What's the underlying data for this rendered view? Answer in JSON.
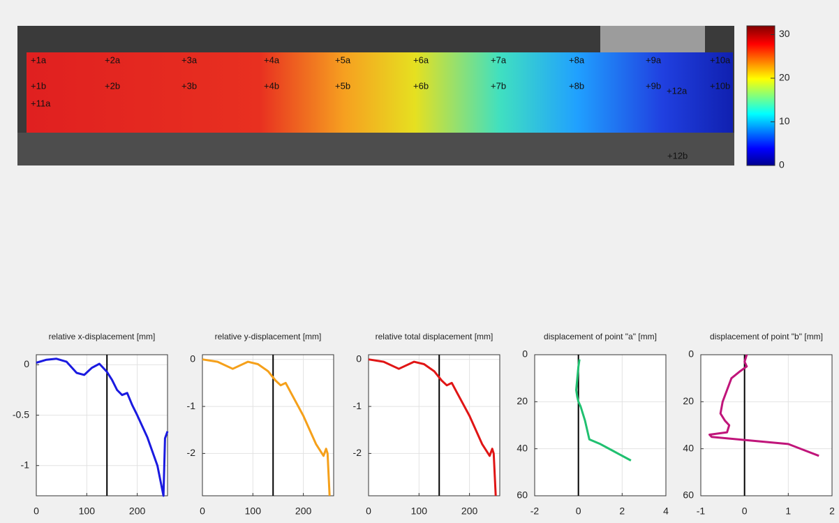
{
  "chart_data": [
    {
      "type": "image",
      "colorbar": {
        "clim": [
          0,
          32
        ],
        "ticks": [
          0,
          10,
          20,
          30
        ]
      },
      "point_labels": [
        "+1a",
        "+2a",
        "+3a",
        "+4a",
        "+5a",
        "+6a",
        "+7a",
        "+8a",
        "+9a",
        "+10a",
        "+1b",
        "+2b",
        "+3b",
        "+4b",
        "+5b",
        "+6b",
        "+7b",
        "+8b",
        "+9b",
        "+10b",
        "+11a",
        "+12a",
        "+12b"
      ]
    },
    {
      "type": "line",
      "title": "relative x-displacement [mm]",
      "color": "#1a1ae0",
      "x": [
        0,
        20,
        40,
        60,
        80,
        95,
        110,
        125,
        140,
        150,
        160,
        170,
        180,
        190,
        200,
        220,
        240,
        252,
        255,
        260
      ],
      "values": [
        0.02,
        0.05,
        0.06,
        0.03,
        -0.08,
        -0.1,
        -0.03,
        0.01,
        -0.07,
        -0.15,
        -0.25,
        -0.3,
        -0.28,
        -0.4,
        -0.5,
        -0.72,
        -1.0,
        -1.3,
        -0.73,
        -0.66
      ],
      "xlim": [
        0,
        260
      ],
      "ylim": [
        -1.3,
        0.1
      ],
      "xticks": [
        0,
        100,
        200
      ],
      "yticks": [
        -1,
        -0.5,
        0
      ],
      "grid": true,
      "vline": 140
    },
    {
      "type": "line",
      "title": "relative y-displacement [mm]",
      "color": "#f5a01a",
      "x": [
        0,
        30,
        60,
        90,
        110,
        130,
        145,
        155,
        165,
        175,
        200,
        225,
        240,
        245,
        248,
        252
      ],
      "values": [
        0,
        -0.05,
        -0.2,
        -0.05,
        -0.1,
        -0.25,
        -0.45,
        -0.55,
        -0.5,
        -0.7,
        -1.2,
        -1.8,
        -2.05,
        -1.9,
        -2.0,
        -2.9
      ],
      "xlim": [
        0,
        260
      ],
      "ylim": [
        -2.9,
        0.1
      ],
      "xticks": [
        0,
        100,
        200
      ],
      "yticks": [
        -2,
        -1,
        0
      ],
      "grid": true,
      "vline": 140
    },
    {
      "type": "line",
      "title": "relative total displacement [mm]",
      "color": "#e01515",
      "x": [
        0,
        30,
        60,
        90,
        110,
        130,
        145,
        155,
        165,
        175,
        200,
        225,
        240,
        245,
        248,
        252
      ],
      "values": [
        0,
        -0.05,
        -0.2,
        -0.05,
        -0.1,
        -0.25,
        -0.45,
        -0.55,
        -0.5,
        -0.7,
        -1.2,
        -1.8,
        -2.05,
        -1.9,
        -2.0,
        -2.9
      ],
      "xlim": [
        0,
        260
      ],
      "ylim": [
        -2.9,
        0.1
      ],
      "xticks": [
        0,
        100,
        200
      ],
      "yticks": [
        -2,
        -1,
        0
      ],
      "grid": true,
      "vline": 140
    },
    {
      "type": "line",
      "title": "displacement of point \"a\" [mm]",
      "color": "#20c070",
      "y_reversed": true,
      "x": [
        0.05,
        0,
        -0.05,
        -0.1,
        -0.05,
        0,
        0.1,
        0.3,
        0.5,
        1.0,
        1.6,
        2.4
      ],
      "values": [
        2,
        5,
        10,
        15,
        18,
        20,
        22,
        28,
        36,
        38,
        41,
        45
      ],
      "xlim": [
        -2,
        4
      ],
      "ylim": [
        0,
        60
      ],
      "xticks": [
        -2,
        0,
        2,
        4
      ],
      "yticks": [
        0,
        20,
        40,
        60
      ],
      "grid": true,
      "vline": 0
    },
    {
      "type": "line",
      "title": "displacement of point \"b\" [mm]",
      "color": "#c0157a",
      "y_reversed": true,
      "x": [
        0.05,
        0,
        0.05,
        -0.1,
        -0.3,
        -0.4,
        -0.5,
        -0.55,
        -0.45,
        -0.35,
        -0.4,
        -0.8,
        -0.75,
        1.0,
        1.7
      ],
      "values": [
        0,
        3,
        5,
        7,
        10,
        15,
        20,
        25,
        28,
        30,
        33,
        34,
        35,
        38,
        43
      ],
      "xlim": [
        -1,
        2
      ],
      "ylim": [
        0,
        60
      ],
      "xticks": [
        -1,
        0,
        1,
        2
      ],
      "yticks": [
        0,
        20,
        40,
        60
      ],
      "grid": true,
      "vline": 0
    }
  ]
}
